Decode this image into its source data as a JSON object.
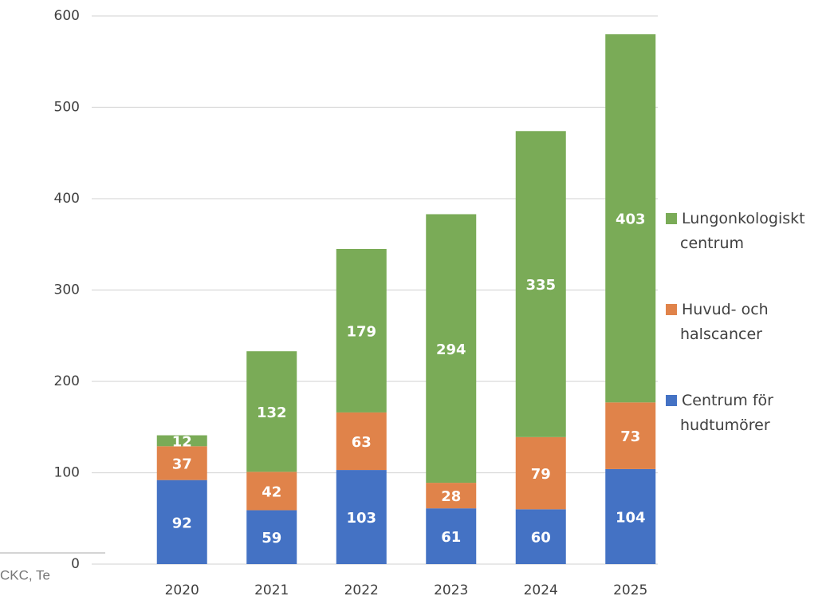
{
  "chart_data": {
    "type": "stacked_bar",
    "categories": [
      "2020",
      "2021",
      "2022",
      "2023",
      "2024",
      "2025"
    ],
    "series": [
      {
        "name": "Centrum för hudtumörer",
        "color": "#4472c4",
        "values": [
          92,
          59,
          103,
          61,
          60,
          104
        ]
      },
      {
        "name": "Huvud- och halscancer",
        "color": "#e0834a",
        "values": [
          37,
          42,
          63,
          28,
          79,
          73
        ]
      },
      {
        "name": "Lungonkologiskt centrum",
        "color": "#7aab57",
        "values": [
          12,
          132,
          179,
          294,
          335,
          403
        ]
      }
    ],
    "ylim": [
      0,
      600
    ],
    "yticks": [
      0,
      100,
      200,
      300,
      400,
      500,
      600
    ],
    "grid": true,
    "legend": "right",
    "source": "CKC, Te"
  }
}
